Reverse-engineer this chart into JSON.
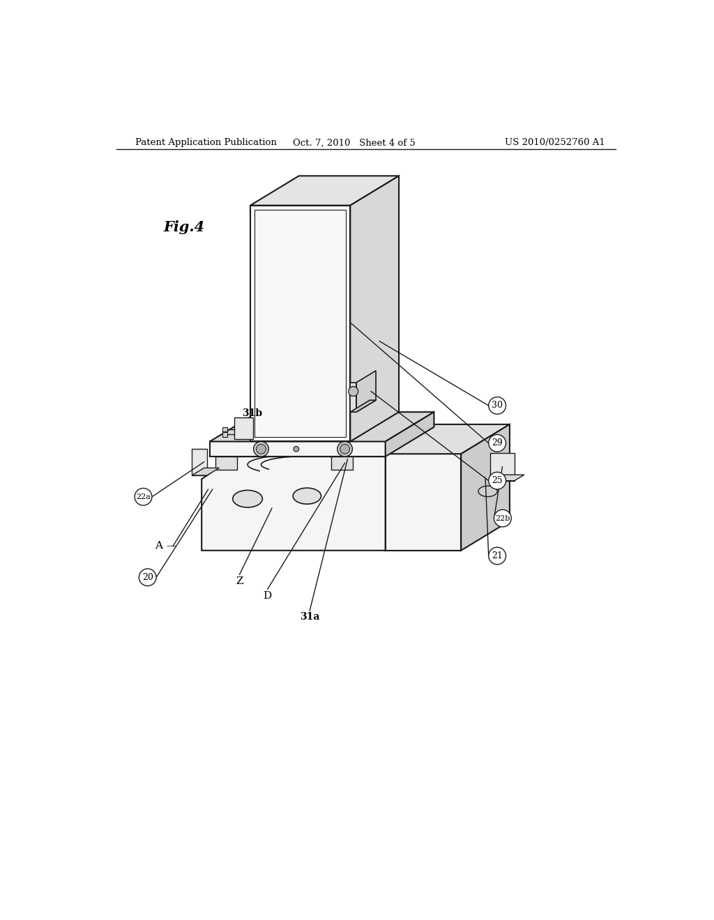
{
  "bg_color": "#ffffff",
  "header_left": "Patent Application Publication",
  "header_center": "Oct. 7, 2010   Sheet 4 of 5",
  "header_right": "US 2010/0252760 A1",
  "fig_label": "Fig.4",
  "edge_color": "#1a1a1a",
  "face_front": "#f5f5f5",
  "face_top": "#e0e0e0",
  "face_right": "#cccccc",
  "face_darker": "#b8b8b8"
}
